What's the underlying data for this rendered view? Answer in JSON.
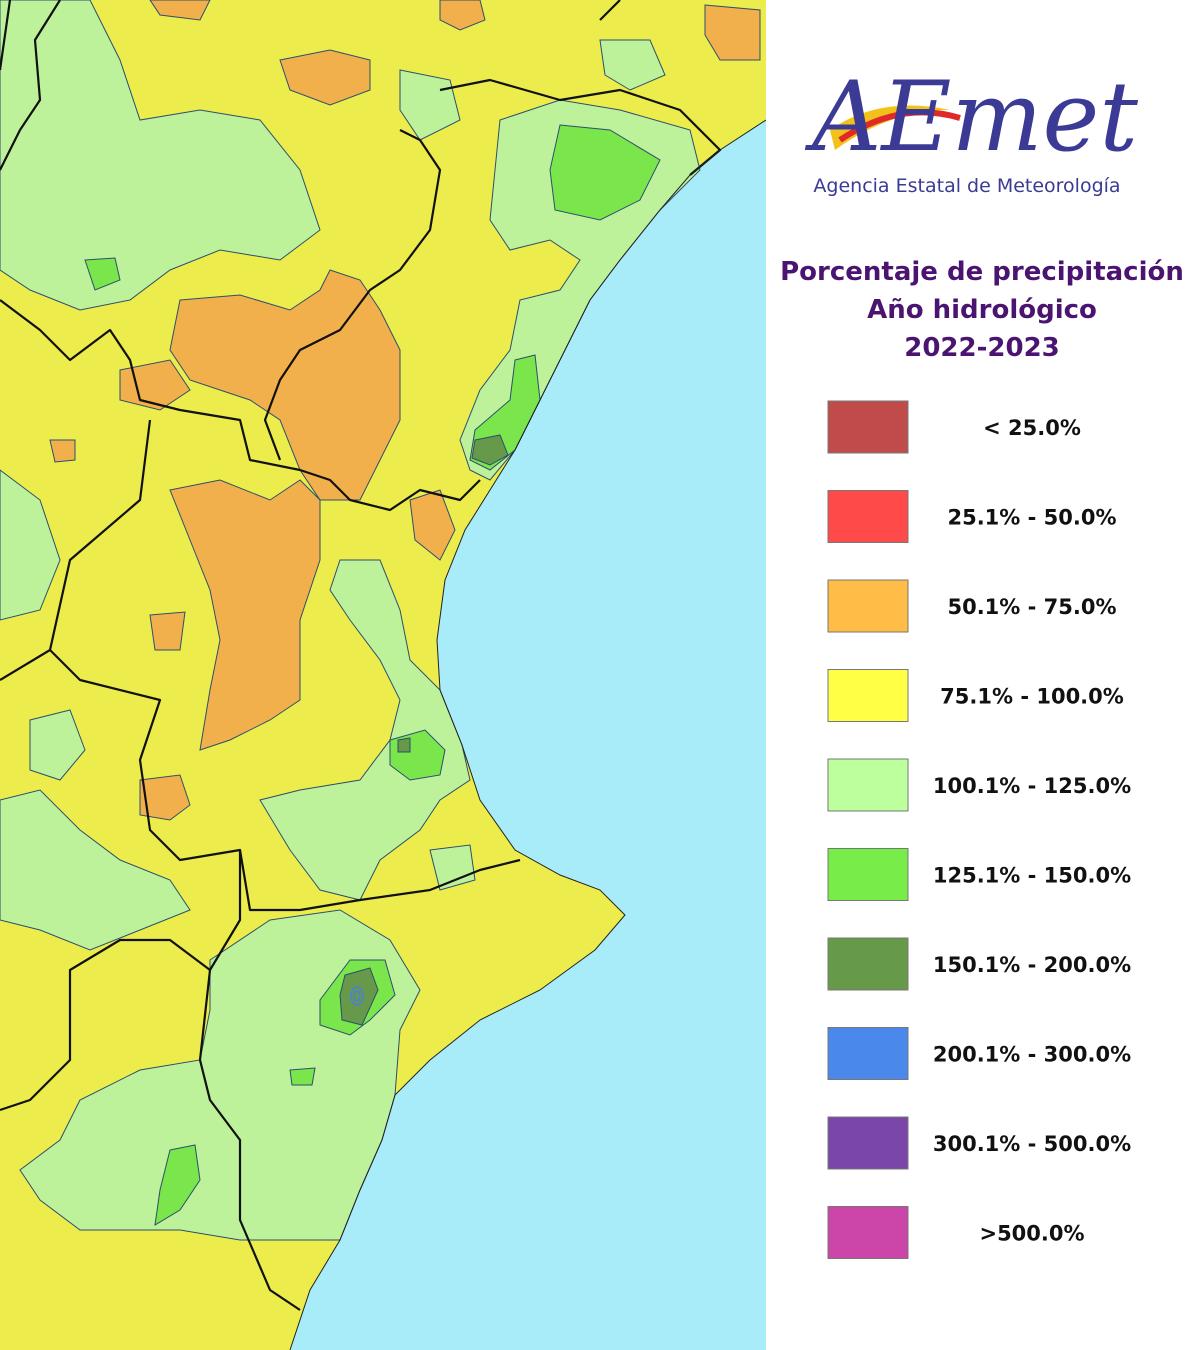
{
  "logo": {
    "name": "AEmet",
    "agency": "Agencia Estatal de Meteorología"
  },
  "title": [
    "Porcentaje de precipitación",
    "Año hidrológico",
    "2022-2023"
  ],
  "legend": [
    {
      "label": "< 25.0%",
      "color": "#c04b4b"
    },
    {
      "label": "25.1% - 50.0%",
      "color": "#ff4a4a"
    },
    {
      "label": "50.1% - 75.0%",
      "color": "#ffbc46"
    },
    {
      "label": "75.1% - 100.0%",
      "color": "#ffff46"
    },
    {
      "label": "100.1% - 125.0%",
      "color": "#bcff9c"
    },
    {
      "label": "125.1% - 150.0%",
      "color": "#78ec48"
    },
    {
      "label": "150.1% - 200.0%",
      "color": "#669a48"
    },
    {
      "label": "200.1% - 300.0%",
      "color": "#4a88ec"
    },
    {
      "label": "300.1% - 500.0%",
      "color": "#7a46a8"
    },
    {
      "label": ">500.0%",
      "color": "#cc46aa"
    }
  ]
}
